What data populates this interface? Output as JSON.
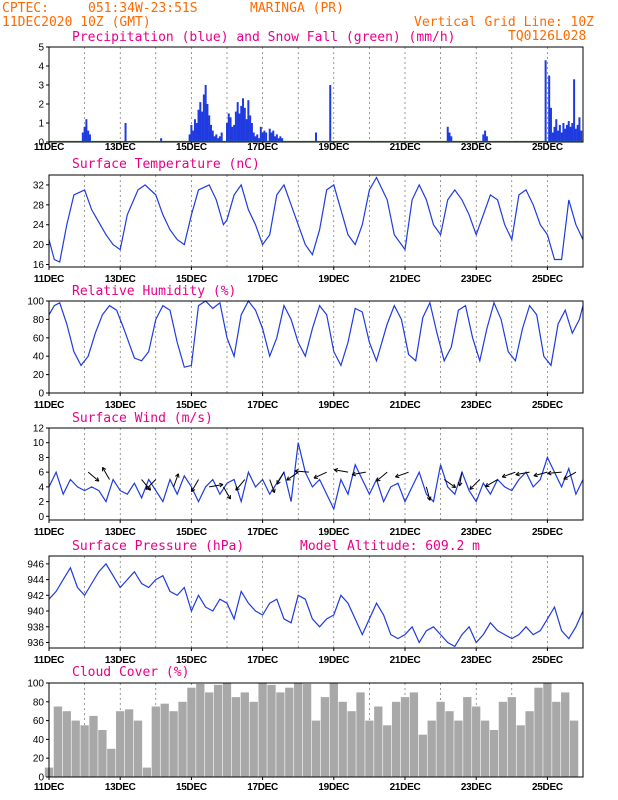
{
  "header": {
    "source": "CPTEC:",
    "coords": "051:34W-23:51S",
    "location": "MARINGA (PR)",
    "run": "11DEC2020 10Z (GMT)",
    "grid_note": "Vertical Grid Line: 10Z",
    "code": "TQ0126L028"
  },
  "colors": {
    "header": "#ff6a00",
    "panel_title": "#e8008a",
    "series": "#1f3be0",
    "snow": "#22aa22",
    "cloud": "#a8a8a8"
  },
  "x_axis": {
    "labels": [
      "11DEC",
      "13DEC",
      "15DEC",
      "17DEC",
      "19DEC",
      "21DEC",
      "23DEC",
      "25DEC"
    ],
    "label_days": [
      0,
      2,
      4,
      6,
      8,
      10,
      12,
      14
    ],
    "start_label": "11DEC2020 10Z",
    "days_span": 15
  },
  "chart_data": [
    {
      "type": "bar",
      "title": "Precipitation (blue) and Snow Fall (green) (mm/h)",
      "ylim": [
        0,
        5
      ],
      "yticks": [
        0,
        1,
        2,
        3,
        4,
        5
      ],
      "series": [
        {
          "name": "Precipitation",
          "color": "#1f3be0",
          "x_days": [
            0.95,
            1.0,
            1.05,
            1.1,
            1.15,
            2.15,
            3.15,
            3.95,
            4.0,
            4.05,
            4.1,
            4.15,
            4.2,
            4.25,
            4.3,
            4.35,
            4.4,
            4.45,
            4.5,
            4.55,
            4.6,
            4.65,
            4.7,
            4.75,
            4.8,
            4.85,
            5.0,
            5.05,
            5.1,
            5.15,
            5.2,
            5.25,
            5.3,
            5.35,
            5.4,
            5.45,
            5.5,
            5.55,
            5.6,
            5.65,
            5.7,
            5.75,
            5.8,
            5.85,
            5.9,
            5.95,
            6.0,
            6.05,
            6.1,
            6.2,
            6.25,
            6.3,
            6.35,
            6.4,
            6.45,
            6.5,
            6.55,
            7.5,
            7.9,
            11.2,
            11.25,
            11.3,
            12.2,
            12.25,
            12.3,
            13.95,
            14.05,
            14.1,
            14.15,
            14.2,
            14.25,
            14.3,
            14.35,
            14.4,
            14.45,
            14.5,
            14.55,
            14.6,
            14.65,
            14.7,
            14.75,
            14.8,
            14.85,
            14.9,
            14.95
          ],
          "values": [
            0.5,
            0.8,
            1.2,
            0.6,
            0.4,
            1.0,
            0.2,
            0.4,
            0.9,
            0.6,
            1.2,
            1.0,
            1.7,
            2.1,
            1.6,
            2.5,
            3.0,
            2.0,
            1.4,
            0.9,
            0.6,
            0.3,
            0.4,
            0.2,
            0.3,
            0.5,
            1.0,
            1.5,
            1.3,
            0.8,
            0.9,
            1.6,
            2.1,
            1.5,
            1.9,
            2.3,
            1.8,
            1.2,
            2.2,
            1.4,
            1.0,
            0.5,
            0.3,
            0.4,
            0.2,
            0.8,
            0.5,
            0.6,
            0.5,
            0.7,
            0.5,
            0.6,
            0.3,
            0.4,
            0.2,
            0.3,
            0.2,
            0.5,
            3.0,
            0.8,
            0.5,
            0.3,
            0.4,
            0.6,
            0.3,
            4.3,
            3.5,
            1.8,
            0.5,
            0.8,
            1.2,
            0.6,
            0.9,
            0.5,
            1.0,
            0.7,
            0.9,
            1.1,
            0.8,
            1.0,
            3.3,
            0.7,
            0.9,
            1.3,
            0.6
          ]
        },
        {
          "name": "Snow Fall",
          "color": "#22aa22",
          "x_days": [],
          "values": []
        }
      ]
    },
    {
      "type": "line",
      "title": "Surface Temperature (nC)",
      "ylim": [
        15.5,
        34
      ],
      "yticks": [
        16,
        20,
        24,
        28,
        32
      ],
      "series": [
        {
          "name": "Temperature",
          "color": "#1f3be0",
          "x_days": [
            0,
            0.15,
            0.3,
            0.5,
            0.7,
            1.0,
            1.2,
            1.4,
            1.6,
            1.8,
            2.0,
            2.2,
            2.5,
            2.7,
            3.0,
            3.2,
            3.4,
            3.6,
            3.8,
            4.0,
            4.2,
            4.5,
            4.7,
            4.9,
            5.0,
            5.2,
            5.4,
            5.6,
            5.8,
            6.0,
            6.2,
            6.4,
            6.6,
            6.8,
            7.0,
            7.2,
            7.4,
            7.6,
            7.8,
            8.0,
            8.2,
            8.4,
            8.6,
            8.8,
            9.0,
            9.2,
            9.5,
            9.7,
            10.0,
            10.2,
            10.4,
            10.6,
            10.8,
            11.0,
            11.2,
            11.4,
            11.6,
            11.8,
            12.0,
            12.2,
            12.4,
            12.6,
            12.8,
            13.0,
            13.2,
            13.4,
            13.6,
            13.8,
            14.0,
            14.2,
            14.4,
            14.6,
            14.8,
            15.0
          ],
          "values": [
            21,
            17,
            16.5,
            24,
            30,
            31,
            27,
            24.5,
            22,
            20,
            19,
            26,
            31,
            32,
            30,
            26,
            23,
            21,
            20,
            26,
            31,
            32,
            29,
            24,
            25,
            30,
            32,
            27,
            24,
            20,
            22,
            30,
            32,
            28,
            24,
            20,
            18,
            23,
            31,
            32,
            27,
            22,
            20,
            24,
            31,
            33.5,
            29,
            22,
            19,
            29,
            32,
            29,
            24,
            22,
            29,
            31,
            29,
            26,
            22,
            26,
            30,
            29,
            24,
            21,
            30,
            31,
            28,
            24,
            22,
            17,
            17,
            29,
            24,
            21
          ]
        }
      ]
    },
    {
      "type": "line",
      "title": "Relative Humidity (%)",
      "ylim": [
        0,
        100
      ],
      "yticks": [
        0,
        20,
        40,
        60,
        80,
        100
      ],
      "series": [
        {
          "name": "Relative Humidity",
          "color": "#1f3be0",
          "x_days": [
            0,
            0.15,
            0.3,
            0.5,
            0.7,
            0.9,
            1.1,
            1.3,
            1.5,
            1.7,
            1.9,
            2.1,
            2.4,
            2.6,
            2.8,
            3.0,
            3.2,
            3.4,
            3.6,
            3.8,
            4.0,
            4.2,
            4.4,
            4.6,
            4.8,
            5.0,
            5.2,
            5.4,
            5.6,
            5.8,
            6.0,
            6.2,
            6.4,
            6.6,
            6.8,
            7.0,
            7.2,
            7.4,
            7.6,
            7.8,
            8.0,
            8.2,
            8.4,
            8.6,
            8.8,
            9.0,
            9.2,
            9.5,
            9.7,
            9.9,
            10.1,
            10.3,
            10.5,
            10.7,
            10.9,
            11.1,
            11.3,
            11.5,
            11.7,
            11.9,
            12.1,
            12.3,
            12.5,
            12.7,
            12.9,
            13.1,
            13.3,
            13.5,
            13.7,
            13.9,
            14.1,
            14.3,
            14.5,
            14.7,
            14.9,
            15.0
          ],
          "values": [
            85,
            95,
            98,
            75,
            45,
            30,
            40,
            65,
            85,
            95,
            90,
            70,
            38,
            35,
            45,
            80,
            95,
            90,
            55,
            28,
            30,
            95,
            100,
            92,
            98,
            60,
            40,
            85,
            100,
            90,
            70,
            40,
            60,
            95,
            80,
            55,
            40,
            70,
            95,
            85,
            45,
            30,
            55,
            92,
            88,
            55,
            35,
            75,
            95,
            80,
            42,
            35,
            82,
            98,
            65,
            35,
            50,
            90,
            95,
            60,
            35,
            70,
            98,
            80,
            45,
            35,
            70,
            95,
            85,
            40,
            30,
            75,
            90,
            65,
            80,
            95
          ]
        }
      ]
    },
    {
      "type": "line",
      "title": "Surface Wind (m/s)",
      "ylim": [
        -0.5,
        12
      ],
      "yticks": [
        0,
        2,
        4,
        6,
        8,
        10,
        12
      ],
      "series": [
        {
          "name": "Wind speed",
          "color": "#1f3be0",
          "x_days": [
            0,
            0.2,
            0.4,
            0.6,
            0.8,
            1.0,
            1.2,
            1.4,
            1.6,
            1.8,
            2.0,
            2.2,
            2.4,
            2.6,
            2.8,
            3.0,
            3.2,
            3.4,
            3.6,
            3.8,
            4.0,
            4.2,
            4.4,
            4.6,
            4.8,
            5.0,
            5.2,
            5.4,
            5.6,
            5.8,
            6.0,
            6.2,
            6.4,
            6.6,
            6.8,
            7.0,
            7.2,
            7.4,
            7.6,
            7.8,
            8.0,
            8.2,
            8.4,
            8.6,
            8.8,
            9.0,
            9.2,
            9.4,
            9.6,
            9.8,
            10.0,
            10.2,
            10.4,
            10.6,
            10.8,
            11.0,
            11.2,
            11.4,
            11.6,
            11.8,
            12.0,
            12.2,
            12.4,
            12.6,
            12.8,
            13.0,
            13.2,
            13.4,
            13.6,
            13.8,
            14.0,
            14.2,
            14.4,
            14.6,
            14.8,
            15.0
          ],
          "values": [
            4,
            6,
            3,
            5,
            4,
            3.5,
            4,
            3.5,
            2,
            5,
            3.5,
            3,
            4.5,
            2.5,
            5,
            3.5,
            2,
            5,
            3,
            5.5,
            4,
            2,
            4,
            5,
            3,
            4.5,
            5,
            2,
            6,
            4,
            5,
            3,
            4.5,
            6,
            2,
            10,
            6,
            4,
            5,
            3,
            1,
            5,
            3,
            7,
            5,
            3,
            5,
            2,
            4,
            4.5,
            2,
            4,
            6,
            3,
            2,
            7,
            4,
            3,
            6,
            3.5,
            2,
            4.5,
            3,
            5,
            4,
            3.5,
            5,
            6,
            4,
            5,
            8,
            6,
            4,
            6.5,
            3,
            5
          ]
        }
      ],
      "vectors_note": "wind direction arrows"
    },
    {
      "type": "line",
      "title": "Surface Pressure (hPa)",
      "annotation": "Model Altitude: 609.2 m",
      "ylim": [
        935.3,
        947
      ],
      "yticks": [
        936,
        938,
        940,
        942,
        944,
        946
      ],
      "series": [
        {
          "name": "Surface Pressure",
          "color": "#1f3be0",
          "x_days": [
            0,
            0.2,
            0.4,
            0.6,
            0.8,
            1.0,
            1.2,
            1.4,
            1.6,
            1.8,
            2.0,
            2.2,
            2.4,
            2.6,
            2.8,
            3.0,
            3.2,
            3.4,
            3.6,
            3.8,
            4.0,
            4.2,
            4.4,
            4.6,
            4.8,
            5.0,
            5.2,
            5.4,
            5.6,
            5.8,
            6.0,
            6.2,
            6.4,
            6.6,
            6.8,
            7.0,
            7.2,
            7.4,
            7.6,
            7.8,
            8.0,
            8.2,
            8.4,
            8.6,
            8.8,
            9.0,
            9.2,
            9.4,
            9.6,
            9.8,
            10.0,
            10.2,
            10.4,
            10.6,
            10.8,
            11.0,
            11.2,
            11.4,
            11.6,
            11.8,
            12.0,
            12.2,
            12.4,
            12.6,
            12.8,
            13.0,
            13.2,
            13.4,
            13.6,
            13.8,
            14.0,
            14.2,
            14.4,
            14.6,
            14.8,
            15.0
          ],
          "values": [
            941.5,
            942.5,
            944,
            945.5,
            943,
            942,
            943.5,
            945,
            946,
            944.5,
            943,
            944,
            945,
            943.5,
            943,
            944,
            944.5,
            942.5,
            942,
            943,
            940,
            942,
            940.5,
            940,
            941.5,
            941,
            939,
            942.5,
            941,
            940,
            939.5,
            941,
            941.5,
            939,
            938.5,
            942,
            941.5,
            939,
            938,
            939,
            939.5,
            942,
            941,
            939,
            937,
            939,
            941,
            939.5,
            937,
            936.5,
            937,
            938,
            936,
            937.5,
            938,
            937,
            936,
            935.5,
            937,
            938,
            936,
            937,
            938.5,
            937.5,
            937,
            936.5,
            937,
            938,
            937,
            937.5,
            939,
            940.5,
            937.5,
            936.5,
            938,
            940
          ]
        }
      ]
    },
    {
      "type": "bar",
      "title": "Cloud Cover (%)",
      "ylim": [
        0,
        100
      ],
      "yticks": [
        0,
        20,
        40,
        60,
        80,
        100
      ],
      "series": [
        {
          "name": "Cloud Cover",
          "color": "#a8a8a8",
          "x_days": [
            0.0,
            0.25,
            0.5,
            0.75,
            1.0,
            1.25,
            1.5,
            1.75,
            2.0,
            2.25,
            2.5,
            2.75,
            3.0,
            3.25,
            3.5,
            3.75,
            4.0,
            4.25,
            4.5,
            4.75,
            5.0,
            5.25,
            5.5,
            5.75,
            6.0,
            6.25,
            6.5,
            6.75,
            7.0,
            7.25,
            7.5,
            7.75,
            8.0,
            8.25,
            8.5,
            8.75,
            9.0,
            9.25,
            9.5,
            9.75,
            10.0,
            10.25,
            10.5,
            10.75,
            11.0,
            11.25,
            11.5,
            11.75,
            12.0,
            12.25,
            12.5,
            12.75,
            13.0,
            13.25,
            13.5,
            13.75,
            14.0,
            14.25,
            14.5,
            14.75
          ],
          "values": [
            10,
            75,
            70,
            60,
            55,
            65,
            50,
            30,
            70,
            72,
            60,
            10,
            75,
            78,
            70,
            80,
            95,
            99,
            90,
            98,
            100,
            85,
            90,
            80,
            100,
            98,
            90,
            95,
            100,
            99,
            60,
            85,
            100,
            80,
            70,
            90,
            60,
            75,
            55,
            80,
            85,
            90,
            45,
            60,
            80,
            70,
            60,
            85,
            75,
            60,
            50,
            80,
            85,
            55,
            70,
            95,
            100,
            80,
            90,
            60
          ]
        }
      ]
    }
  ]
}
